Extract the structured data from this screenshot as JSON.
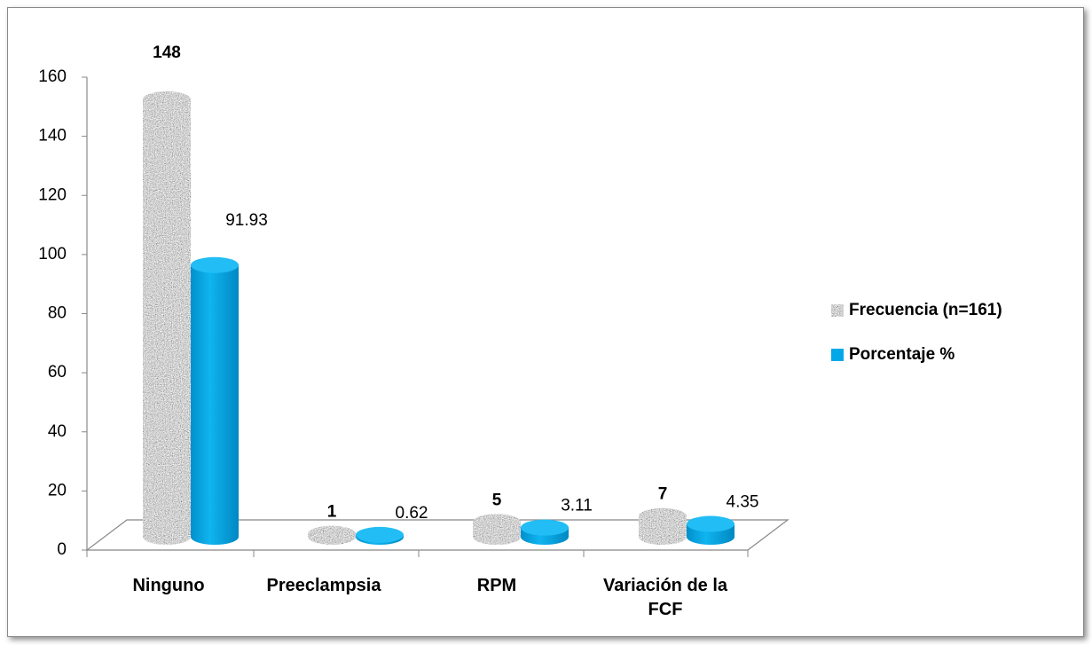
{
  "chart_data": {
    "type": "bar",
    "categories": [
      "Ninguno",
      "Preeclampsia",
      "RPM",
      "Variación de la FCF"
    ],
    "series": [
      {
        "name": "Frecuencia (n=161)",
        "color": "#9a9a9a",
        "values": [
          148,
          1,
          5,
          7
        ]
      },
      {
        "name": "Porcentaje %",
        "color": "#00a8e8",
        "values": [
          91.93,
          0.62,
          3.11,
          4.35
        ]
      }
    ],
    "ylim": [
      0,
      160
    ],
    "yticks": [
      0,
      20,
      40,
      60,
      80,
      100,
      120,
      140,
      160
    ],
    "legend": "right"
  }
}
